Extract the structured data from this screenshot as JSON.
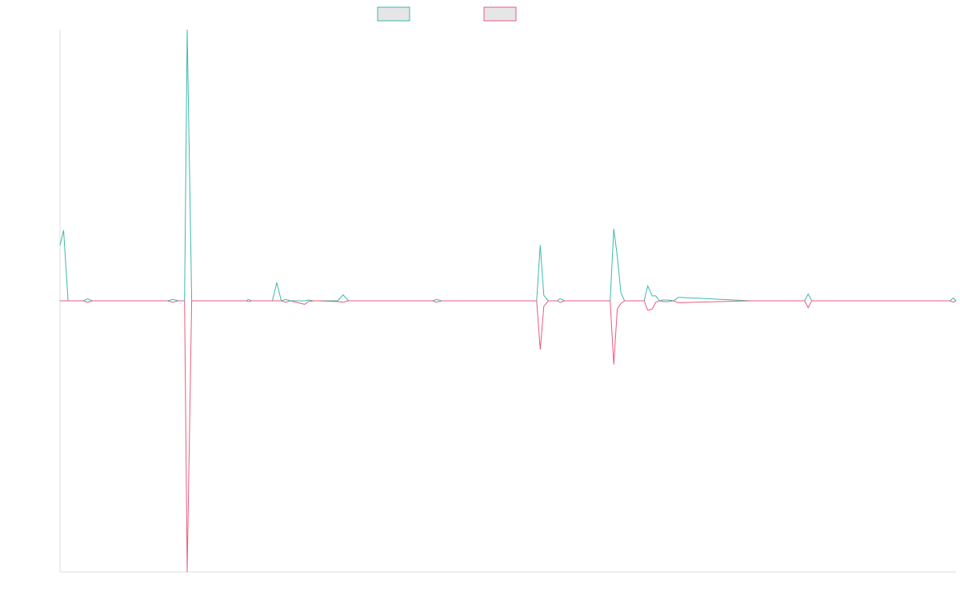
{
  "chart_data": {
    "type": "line",
    "title": "",
    "xlabel": "",
    "ylabel": "",
    "legend": {
      "placement": "top-center",
      "labels": [
        "",
        ""
      ]
    },
    "grid": false,
    "xlim": [
      0,
      1
    ],
    "ylim": [
      -1,
      1
    ],
    "x": [
      0,
      0.004,
      0.009,
      0.026,
      0.031,
      0.036,
      0.12,
      0.126,
      0.132,
      0.139,
      0.142,
      0.147,
      0.208,
      0.21,
      0.214,
      0.237,
      0.242,
      0.247,
      0.252,
      0.257,
      0.273,
      0.277,
      0.283,
      0.288,
      0.31,
      0.316,
      0.322,
      0.345,
      0.416,
      0.42,
      0.426,
      0.532,
      0.536,
      0.54,
      0.545,
      0.55,
      0.555,
      0.558,
      0.563,
      0.57,
      0.587,
      0.614,
      0.618,
      0.622,
      0.626,
      0.63,
      0.652,
      0.656,
      0.661,
      0.665,
      0.669,
      0.673,
      0.678,
      0.685,
      0.69,
      0.77,
      0.831,
      0.835,
      0.839,
      0.993,
      0.997,
      1
    ],
    "series": [
      {
        "name": "",
        "color": "#3cb8ab",
        "values": [
          0.205,
          0.26,
          0.0,
          0.0,
          0.007,
          0.0,
          0.0,
          0.005,
          0.0,
          0.0,
          1.0,
          0.0,
          0.0,
          0.005,
          0.0,
          0.0,
          0.067,
          0.0,
          0.005,
          0.0,
          0.0,
          0.003,
          0.0,
          0.0,
          0.0,
          0.022,
          0.0,
          0.0,
          0.0,
          0.005,
          0.0,
          0.0,
          0.205,
          0.02,
          0.0,
          0.0,
          0.0,
          0.008,
          0.0,
          0.0,
          0.0,
          0.0,
          0.265,
          0.165,
          0.03,
          0.0,
          0.0,
          0.055,
          0.018,
          0.018,
          0.0,
          0.003,
          0.003,
          0.0,
          0.013,
          0.0,
          0.0,
          0.025,
          0.0,
          0.0,
          0.01,
          0.0
        ]
      },
      {
        "name": "",
        "color": "#e85b7e",
        "values": [
          0.0,
          0.0,
          0.0,
          0.0,
          -0.006,
          0.0,
          0.0,
          -0.005,
          0.0,
          0.0,
          -1.0,
          0.0,
          0.0,
          -0.003,
          0.0,
          0.0,
          0.0,
          0.0,
          -0.005,
          0.0,
          -0.013,
          -0.003,
          0.0,
          0.0,
          -0.003,
          -0.005,
          0.0,
          0.0,
          0.0,
          -0.005,
          0.0,
          0.0,
          -0.18,
          -0.02,
          0.0,
          0.0,
          0.0,
          -0.006,
          0.0,
          0.0,
          0.0,
          0.0,
          -0.235,
          -0.03,
          -0.01,
          0.0,
          0.0,
          -0.035,
          -0.03,
          -0.005,
          0.0,
          -0.003,
          -0.003,
          0.0,
          -0.007,
          0.0,
          0.0,
          -0.025,
          0.0,
          0.0,
          -0.005,
          0.0
        ]
      }
    ]
  },
  "style": {
    "axis_color": "#dddddd",
    "legend_box_fill": "#e6e6e6"
  }
}
